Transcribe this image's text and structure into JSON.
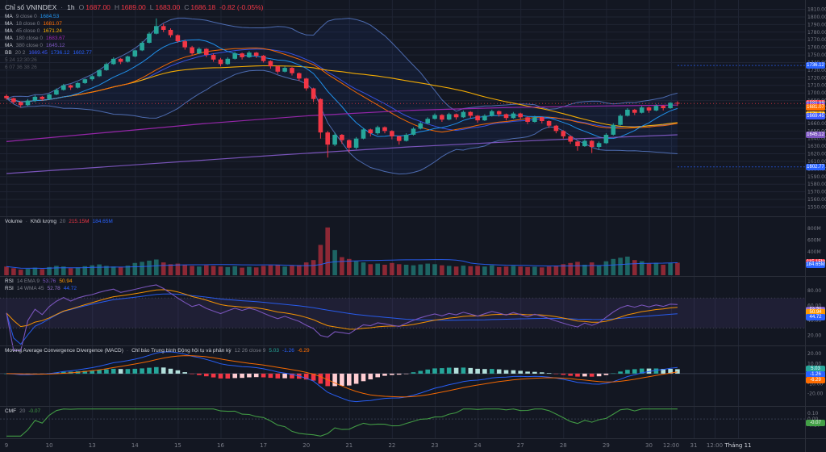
{
  "legend": {
    "symbol": "Chỉ số VNINDEX",
    "sep": "·",
    "interval": "1h",
    "o_label": "O",
    "o": "1687.00",
    "h_label": "H",
    "h": "1689.00",
    "l_label": "L",
    "l": "1683.00",
    "c_label": "C",
    "c": "1686.18",
    "change": "-0.82 (-0.05%)"
  },
  "pane_legends": {
    "price": [
      [
        {
          "t": "MA",
          "c": "text"
        },
        {
          "t": "9 close 0",
          "c": "muted"
        },
        {
          "t": "1684.53",
          "c": "#2196f3"
        }
      ],
      [
        {
          "t": "MA",
          "c": "text"
        },
        {
          "t": "18 close 0",
          "c": "muted"
        },
        {
          "t": "1681.07",
          "c": "#ff6d00"
        }
      ],
      [
        {
          "t": "MA",
          "c": "text"
        },
        {
          "t": "45 close 0",
          "c": "muted"
        },
        {
          "t": "1671.24",
          "c": "#ffb300"
        }
      ],
      [
        {
          "t": "MA",
          "c": "text"
        },
        {
          "t": "180 close 0",
          "c": "muted"
        },
        {
          "t": "1683.67",
          "c": "#9c27b0"
        }
      ],
      [
        {
          "t": "MA",
          "c": "text"
        },
        {
          "t": "380 close 0",
          "c": "muted"
        },
        {
          "t": "1645.12",
          "c": "#7e57c2"
        }
      ],
      [
        {
          "t": "BB",
          "c": "text"
        },
        {
          "t": "20 2",
          "c": "muted"
        },
        {
          "t": "1669.45",
          "c": "#3d5afe"
        },
        {
          "t": "1736.12",
          "c": "#2962ff"
        },
        {
          "t": "1602.77",
          "c": "#2962ff"
        }
      ],
      [
        {
          "t": "5 24 12:30:26",
          "c": "dim"
        }
      ],
      [
        {
          "t": "6 07 36 38 26",
          "c": "dim"
        }
      ]
    ],
    "volume": [
      [
        {
          "t": "Volume",
          "c": "text"
        },
        {
          "t": "·",
          "c": "muted"
        },
        {
          "t": "Khối lượng",
          "c": "text"
        },
        {
          "t": "20",
          "c": "muted"
        },
        {
          "t": "215.15M",
          "c": "#f23645"
        },
        {
          "t": "184.65M",
          "c": "#2962ff"
        }
      ]
    ],
    "rsi": [
      [
        {
          "t": "RSI",
          "c": "text"
        },
        {
          "t": "14 EMA 9",
          "c": "muted"
        },
        {
          "t": "53.76",
          "c": "#7e57c2"
        },
        {
          "t": "50.94",
          "c": "#ff9800"
        }
      ],
      [
        {
          "t": "RSI",
          "c": "text"
        },
        {
          "t": "14 WMA 45",
          "c": "muted"
        },
        {
          "t": "52.78",
          "c": "#9575cd"
        },
        {
          "t": "44.72",
          "c": "#2962ff"
        }
      ]
    ],
    "macd": [
      [
        {
          "t": "Moving Average Convergence Divergence (MACD)",
          "c": "text"
        },
        {
          "t": "·",
          "c": "muted"
        },
        {
          "t": "Chỉ báo Trung bình Động hội tụ và phân kỳ",
          "c": "text"
        },
        {
          "t": "12 26 close 9",
          "c": "muted"
        },
        {
          "t": "5.03",
          "c": "#26a69a"
        },
        {
          "t": "-1.26",
          "c": "#2962ff"
        },
        {
          "t": "-6.29",
          "c": "#ff6d00"
        }
      ]
    ],
    "cmf": [
      [
        {
          "t": "CMF",
          "c": "text"
        },
        {
          "t": "20",
          "c": "muted"
        },
        {
          "t": "-0.07",
          "c": "#43a047"
        }
      ]
    ]
  },
  "axis_badges": [
    {
      "pane": "price",
      "v": 1736.12,
      "label": "1736.12",
      "bg": "#2962ff"
    },
    {
      "pane": "price",
      "v": 1686.18,
      "label": "1686.18",
      "bg": "#f23645"
    },
    {
      "pane": "price",
      "v": 1684.53,
      "label": "1684.53",
      "bg": "#2196f3"
    },
    {
      "pane": "price",
      "v": 1683.67,
      "label": "1683.67",
      "bg": "#9c27b0"
    },
    {
      "pane": "price",
      "v": 1681.07,
      "label": "1681.07",
      "bg": "#ff6d00"
    },
    {
      "pane": "price",
      "v": 1671.24,
      "label": "1671.24",
      "bg": "#ffb300"
    },
    {
      "pane": "price",
      "v": 1669.45,
      "label": "1669.45",
      "bg": "#3d5afe"
    },
    {
      "pane": "price",
      "v": 1645.12,
      "label": "1645.12",
      "bg": "#7e57c2"
    },
    {
      "pane": "price",
      "v": 1602.77,
      "label": "1602.77",
      "bg": "#2962ff"
    },
    {
      "pane": "vol",
      "v": 215.15,
      "label": "215.15M",
      "bg": "#f23645"
    },
    {
      "pane": "vol",
      "v": 184.65,
      "label": "184.65M",
      "bg": "#2962ff"
    },
    {
      "pane": "rsi",
      "v": 53.76,
      "label": "53.76",
      "bg": "#7e57c2"
    },
    {
      "pane": "rsi",
      "v": 52.78,
      "label": "52.78",
      "bg": "#9575cd"
    },
    {
      "pane": "rsi",
      "v": 50.94,
      "label": "50.94",
      "bg": "#ff9800"
    },
    {
      "pane": "rsi",
      "v": 44.72,
      "label": "44.72",
      "bg": "#2962ff"
    },
    {
      "pane": "macd",
      "v": 5.03,
      "label": "5.03",
      "bg": "#26a69a"
    },
    {
      "pane": "macd",
      "v": -1.26,
      "label": "-1.26",
      "bg": "#2962ff"
    },
    {
      "pane": "macd",
      "v": -6.29,
      "label": "-6.29",
      "bg": "#ff6d00"
    },
    {
      "pane": "cmf",
      "v": -0.07,
      "label": "-0.07",
      "bg": "#43a047"
    }
  ],
  "colors": {
    "bg": "#131722",
    "grid": "#1f2433",
    "sep": "#2a2e39",
    "axis_text": "#787b86",
    "text": "#d1d4dc",
    "up": "#26a69a",
    "down": "#f23645",
    "bb_line": "#5b7fd1",
    "bb_basis": "#3d5afe",
    "bb_fill": "rgba(41,98,255,0.07)",
    "ma9": "#2196f3",
    "ma18": "#ff6d00",
    "ma45": "#ffb300",
    "ma180": "#9c27b0",
    "ma380": "#7e57c2",
    "vol_up": "rgba(38,166,154,0.55)",
    "vol_dn": "rgba(242,54,69,0.55)",
    "vol_ma": "#2962ff",
    "rsi": "#7e57c2",
    "rsi_ema": "#ff9800",
    "rsi_wma": "#2962ff",
    "rsi_band": "rgba(126,87,194,0.12)",
    "macd": "#2962ff",
    "macd_signal": "#ff6d00",
    "hist_up": "#26a69a",
    "hist_up_weak": "#b2dfdb",
    "hist_dn": "#f23645",
    "hist_dn_weak": "#ffcdd2",
    "cmf": "#43a047"
  },
  "chart_data": {
    "type": "candlestick",
    "symbol": "VNINDEX",
    "interval": "1h",
    "ylim": [
      1542,
      1818
    ],
    "vol_max": 900,
    "price_ticks": [
      1810,
      1800,
      1790,
      1780,
      1770,
      1760,
      1750,
      1740,
      1730,
      1720,
      1710,
      1700,
      1690,
      1680,
      1670,
      1660,
      1650,
      1640,
      1630,
      1620,
      1610,
      1600,
      1590,
      1580,
      1570,
      1560,
      1550
    ],
    "volume_ticks": [
      {
        "v": 800,
        "t": "800M"
      },
      {
        "v": 600,
        "t": "600M"
      },
      {
        "v": 400,
        "t": "400M"
      },
      {
        "v": 200,
        "t": "200M"
      }
    ],
    "rsi_ticks": [
      80,
      60,
      40,
      20
    ],
    "macd_ticks": [
      20,
      10,
      0,
      -10,
      -20
    ],
    "cmf_ticks": [
      0.1,
      0,
      -0.1
    ],
    "candles": [
      [
        1696,
        1698,
        1691,
        1693
      ],
      [
        1693,
        1694,
        1686,
        1688
      ],
      [
        1688,
        1689,
        1681,
        1684
      ],
      [
        1684,
        1692,
        1683,
        1690
      ],
      [
        1690,
        1697,
        1688,
        1695
      ],
      [
        1695,
        1696,
        1690,
        1692
      ],
      [
        1692,
        1699,
        1691,
        1698
      ],
      [
        1698,
        1706,
        1697,
        1704
      ],
      [
        1704,
        1712,
        1703,
        1710
      ],
      [
        1710,
        1711,
        1704,
        1707
      ],
      [
        1707,
        1714,
        1706,
        1713
      ],
      [
        1713,
        1719,
        1712,
        1718
      ],
      [
        1718,
        1724,
        1716,
        1722
      ],
      [
        1722,
        1731,
        1721,
        1730
      ],
      [
        1730,
        1740,
        1729,
        1738
      ],
      [
        1738,
        1747,
        1737,
        1745
      ],
      [
        1745,
        1746,
        1738,
        1741
      ],
      [
        1741,
        1749,
        1740,
        1748
      ],
      [
        1748,
        1757,
        1747,
        1756
      ],
      [
        1756,
        1768,
        1755,
        1766
      ],
      [
        1766,
        1780,
        1765,
        1778
      ],
      [
        1778,
        1798,
        1777,
        1788
      ],
      [
        1788,
        1791,
        1780,
        1783
      ],
      [
        1783,
        1785,
        1773,
        1776
      ],
      [
        1776,
        1777,
        1766,
        1768
      ],
      [
        1768,
        1770,
        1757,
        1760
      ],
      [
        1760,
        1762,
        1749,
        1752
      ],
      [
        1752,
        1760,
        1751,
        1758
      ],
      [
        1758,
        1759,
        1747,
        1750
      ],
      [
        1750,
        1752,
        1741,
        1744
      ],
      [
        1744,
        1746,
        1735,
        1738
      ],
      [
        1738,
        1747,
        1737,
        1745
      ],
      [
        1745,
        1754,
        1744,
        1752
      ],
      [
        1752,
        1753,
        1744,
        1747
      ],
      [
        1747,
        1755,
        1746,
        1753
      ],
      [
        1753,
        1754,
        1746,
        1749
      ],
      [
        1749,
        1750,
        1740,
        1742
      ],
      [
        1742,
        1743,
        1732,
        1735
      ],
      [
        1735,
        1736,
        1725,
        1728
      ],
      [
        1728,
        1735,
        1727,
        1733
      ],
      [
        1733,
        1734,
        1723,
        1726
      ],
      [
        1726,
        1727,
        1716,
        1719
      ],
      [
        1719,
        1720,
        1703,
        1706
      ],
      [
        1706,
        1707,
        1688,
        1692
      ],
      [
        1692,
        1693,
        1640,
        1648
      ],
      [
        1648,
        1650,
        1615,
        1632
      ],
      [
        1632,
        1648,
        1630,
        1645
      ],
      [
        1645,
        1646,
        1633,
        1638
      ],
      [
        1638,
        1639,
        1622,
        1628
      ],
      [
        1628,
        1642,
        1626,
        1640
      ],
      [
        1640,
        1654,
        1639,
        1652
      ],
      [
        1652,
        1653,
        1643,
        1647
      ],
      [
        1647,
        1657,
        1645,
        1655
      ],
      [
        1655,
        1656,
        1647,
        1650
      ],
      [
        1650,
        1651,
        1639,
        1643
      ],
      [
        1643,
        1644,
        1632,
        1637
      ],
      [
        1637,
        1647,
        1636,
        1645
      ],
      [
        1645,
        1655,
        1644,
        1653
      ],
      [
        1653,
        1662,
        1652,
        1660
      ],
      [
        1660,
        1668,
        1659,
        1666
      ],
      [
        1666,
        1673,
        1665,
        1671
      ],
      [
        1671,
        1672,
        1662,
        1665
      ],
      [
        1665,
        1674,
        1664,
        1672
      ],
      [
        1672,
        1673,
        1665,
        1668
      ],
      [
        1668,
        1677,
        1667,
        1675
      ],
      [
        1675,
        1676,
        1667,
        1670
      ],
      [
        1670,
        1671,
        1661,
        1664
      ],
      [
        1664,
        1672,
        1663,
        1670
      ],
      [
        1670,
        1678,
        1669,
        1676
      ],
      [
        1676,
        1677,
        1669,
        1672
      ],
      [
        1672,
        1673,
        1664,
        1667
      ],
      [
        1667,
        1675,
        1666,
        1673
      ],
      [
        1673,
        1674,
        1665,
        1668
      ],
      [
        1668,
        1669,
        1659,
        1662
      ],
      [
        1662,
        1670,
        1661,
        1668
      ],
      [
        1668,
        1669,
        1660,
        1663
      ],
      [
        1663,
        1664,
        1654,
        1657
      ],
      [
        1657,
        1658,
        1647,
        1650
      ],
      [
        1650,
        1651,
        1640,
        1643
      ],
      [
        1643,
        1644,
        1633,
        1636
      ],
      [
        1636,
        1637,
        1624,
        1630
      ],
      [
        1630,
        1639,
        1629,
        1637
      ],
      [
        1637,
        1638,
        1621,
        1629
      ],
      [
        1629,
        1636,
        1626,
        1634
      ],
      [
        1634,
        1647,
        1633,
        1645
      ],
      [
        1645,
        1660,
        1644,
        1658
      ],
      [
        1658,
        1672,
        1657,
        1670
      ],
      [
        1670,
        1680,
        1669,
        1678
      ],
      [
        1678,
        1679,
        1671,
        1674
      ],
      [
        1674,
        1683,
        1673,
        1681
      ],
      [
        1681,
        1682,
        1674,
        1677
      ],
      [
        1677,
        1685,
        1676,
        1683
      ],
      [
        1683,
        1684,
        1677,
        1680
      ],
      [
        1680,
        1688,
        1679,
        1687
      ],
      [
        1687,
        1689,
        1683,
        1686.18
      ]
    ],
    "volumes": [
      150,
      120,
      95,
      110,
      130,
      105,
      140,
      160,
      150,
      120,
      135,
      155,
      170,
      185,
      160,
      150,
      140,
      165,
      210,
      230,
      250,
      270,
      220,
      190,
      200,
      180,
      160,
      150,
      170,
      160,
      150,
      140,
      155,
      130,
      145,
      135,
      160,
      170,
      180,
      150,
      165,
      175,
      220,
      260,
      520,
      820,
      430,
      310,
      280,
      240,
      220,
      190,
      200,
      180,
      210,
      190,
      180,
      170,
      185,
      200,
      190,
      170,
      160,
      150,
      165,
      155,
      160,
      150,
      170,
      140,
      150,
      160,
      150,
      140,
      145,
      135,
      150,
      160,
      190,
      210,
      230,
      180,
      220,
      170,
      240,
      280,
      300,
      320,
      260,
      240,
      200,
      215,
      180,
      210,
      215.15
    ],
    "ma180_points": [
      [
        0,
        1636
      ],
      [
        0.15,
        1648
      ],
      [
        0.3,
        1660
      ],
      [
        0.45,
        1670
      ],
      [
        0.6,
        1677
      ],
      [
        0.75,
        1681
      ],
      [
        0.9,
        1683
      ],
      [
        1,
        1684
      ]
    ],
    "ma380_points": [
      [
        0,
        1594
      ],
      [
        0.2,
        1606
      ],
      [
        0.4,
        1618
      ],
      [
        0.6,
        1629
      ],
      [
        0.8,
        1638
      ],
      [
        1,
        1645
      ]
    ],
    "bb_extension": {
      "upper": 1736.12,
      "lower": 1602.77
    },
    "last_close": 1686.18,
    "time_labels": [
      {
        "t": "9",
        "i": 0
      },
      {
        "t": "10",
        "i": 6
      },
      {
        "t": "13",
        "i": 12
      },
      {
        "t": "14",
        "i": 18
      },
      {
        "t": "15",
        "i": 24
      },
      {
        "t": "16",
        "i": 30
      },
      {
        "t": "17",
        "i": 36
      },
      {
        "t": "20",
        "i": 42
      },
      {
        "t": "21",
        "i": 48
      },
      {
        "t": "22",
        "i": 54
      },
      {
        "t": "23",
        "i": 60
      },
      {
        "t": "24",
        "i": 66
      },
      {
        "t": "27",
        "i": 72
      },
      {
        "t": "28",
        "i": 78
      },
      {
        "t": "29",
        "i": 84
      },
      {
        "t": "30",
        "i": 90
      },
      {
        "t": "12:00",
        "x": 832
      },
      {
        "t": "31",
        "x": 860
      },
      {
        "t": "12:00",
        "x": 886
      },
      {
        "t": "Tháng 11",
        "x": 915,
        "strong": true
      }
    ]
  }
}
